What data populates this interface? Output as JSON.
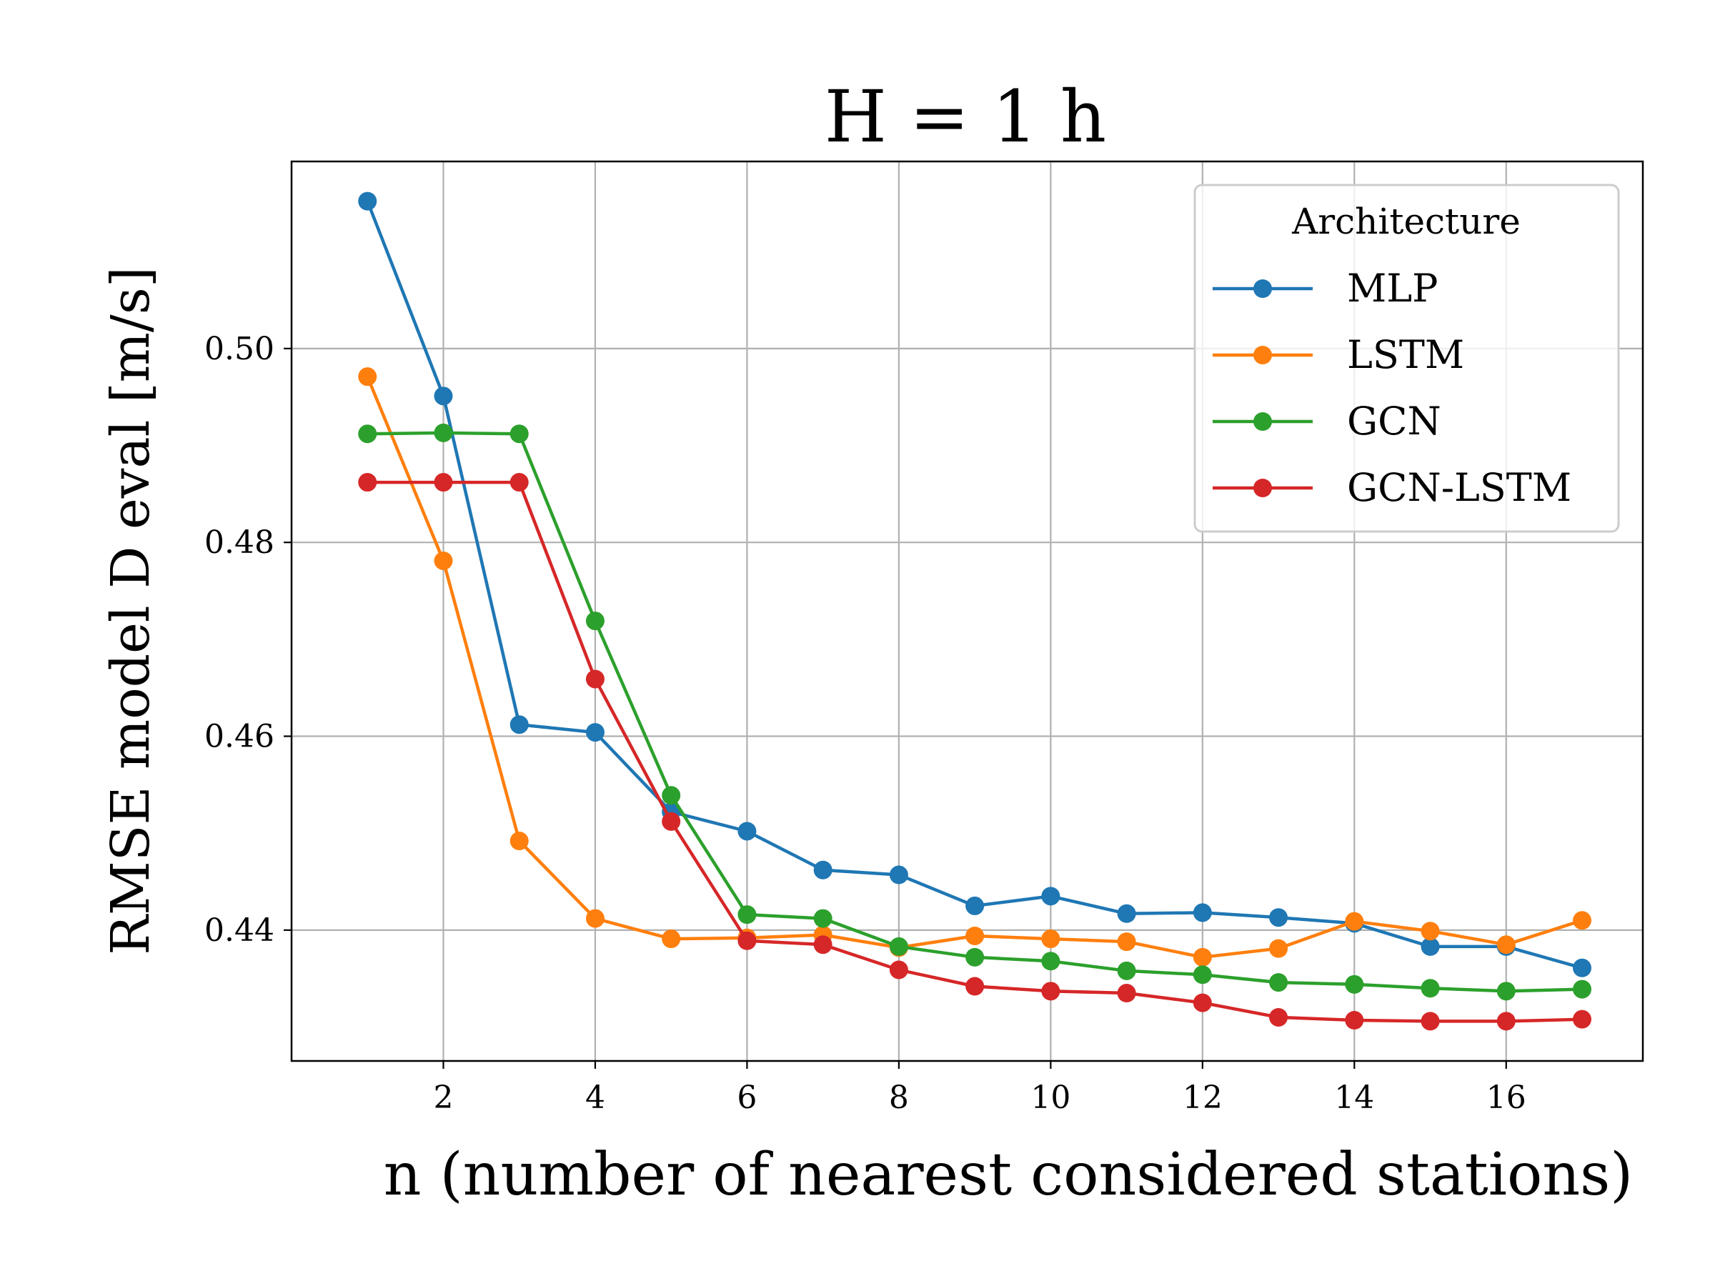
{
  "chart_data": {
    "type": "line",
    "title": "H = 1 h",
    "xlabel": "n (number of nearest considered stations)",
    "ylabel": "RMSE model D eval [m/s]",
    "xlim": [
      0,
      17.8
    ],
    "ylim": [
      0.4265,
      0.5193
    ],
    "xticks": [
      2,
      4,
      6,
      8,
      10,
      12,
      14,
      16
    ],
    "yticks": [
      0.44,
      0.46,
      0.48,
      0.5
    ],
    "ytick_labels": [
      "0.44",
      "0.46",
      "0.48",
      "0.50"
    ],
    "grid": true,
    "legend": {
      "title": "Architecture",
      "placement": "top-right"
    },
    "x": [
      1,
      2,
      3,
      4,
      5,
      6,
      7,
      8,
      9,
      10,
      11,
      12,
      13,
      14,
      15,
      16,
      17
    ],
    "series": [
      {
        "name": "MLP",
        "color": "#1f77b4",
        "values": [
          0.5152,
          0.4951,
          0.4612,
          0.4604,
          0.4522,
          0.4502,
          0.4462,
          0.4457,
          0.4425,
          0.4435,
          0.4417,
          0.4418,
          0.4413,
          0.4407,
          0.4383,
          0.4383,
          0.4361
        ]
      },
      {
        "name": "LSTM",
        "color": "#ff7f0e",
        "values": [
          0.4971,
          0.4781,
          0.4492,
          0.4412,
          0.4391,
          0.4392,
          0.4395,
          0.4382,
          0.4394,
          0.4391,
          0.4388,
          0.4372,
          0.4381,
          0.4409,
          0.4399,
          0.4385,
          0.441
        ]
      },
      {
        "name": "GCN",
        "color": "#2ca02c",
        "values": [
          0.4912,
          0.4913,
          0.4912,
          0.4719,
          0.4539,
          0.4416,
          0.4412,
          0.4383,
          0.4372,
          0.4368,
          0.4358,
          0.4354,
          0.4346,
          0.4344,
          0.434,
          0.4337,
          0.4339
        ]
      },
      {
        "name": "GCN-LSTM",
        "color": "#d62728",
        "values": [
          0.4862,
          0.4862,
          0.4862,
          0.4659,
          0.4512,
          0.4389,
          0.4385,
          0.4359,
          0.4342,
          0.4337,
          0.4335,
          0.4325,
          0.431,
          0.4307,
          0.4306,
          0.4306,
          0.4308
        ]
      }
    ]
  }
}
